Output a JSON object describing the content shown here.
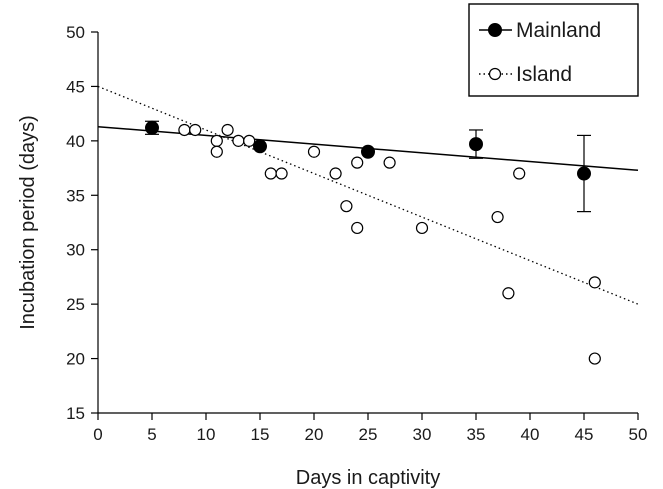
{
  "chart_data": {
    "type": "scatter",
    "xlabel": "Days in captivity",
    "ylabel": "Incubation period (days)",
    "xlim": [
      0,
      50
    ],
    "ylim": [
      15,
      50
    ],
    "xticks": [
      0,
      5,
      10,
      15,
      20,
      25,
      30,
      35,
      40,
      45,
      50
    ],
    "yticks": [
      15,
      20,
      25,
      30,
      35,
      40,
      45,
      50
    ],
    "grid": false,
    "legend_position": "top-right",
    "series": [
      {
        "name": "Mainland",
        "marker": "filled-circle",
        "line_style": "solid",
        "color": "#000000",
        "points": [
          {
            "x": 5,
            "y": 41.2,
            "err_low": 40.6,
            "err_high": 41.8
          },
          {
            "x": 15,
            "y": 39.5
          },
          {
            "x": 25,
            "y": 39.0
          },
          {
            "x": 35,
            "y": 39.7,
            "err_low": 38.4,
            "err_high": 41.0
          },
          {
            "x": 45,
            "y": 37.0,
            "err_low": 33.5,
            "err_high": 40.5
          }
        ],
        "fit": {
          "x": [
            0,
            50
          ],
          "y": [
            41.3,
            37.3
          ]
        }
      },
      {
        "name": "Island",
        "marker": "open-circle",
        "line_style": "dotted",
        "color": "#000000",
        "points": [
          {
            "x": 8,
            "y": 41
          },
          {
            "x": 9,
            "y": 41
          },
          {
            "x": 11,
            "y": 40
          },
          {
            "x": 11,
            "y": 39
          },
          {
            "x": 12,
            "y": 41
          },
          {
            "x": 13,
            "y": 40
          },
          {
            "x": 14,
            "y": 40
          },
          {
            "x": 16,
            "y": 37
          },
          {
            "x": 17,
            "y": 37
          },
          {
            "x": 20,
            "y": 39
          },
          {
            "x": 22,
            "y": 37
          },
          {
            "x": 23,
            "y": 34
          },
          {
            "x": 24,
            "y": 38
          },
          {
            "x": 24,
            "y": 32
          },
          {
            "x": 27,
            "y": 38
          },
          {
            "x": 30,
            "y": 32
          },
          {
            "x": 37,
            "y": 33
          },
          {
            "x": 38,
            "y": 26
          },
          {
            "x": 39,
            "y": 37
          },
          {
            "x": 46,
            "y": 27
          },
          {
            "x": 46,
            "y": 20
          }
        ],
        "fit": {
          "x": [
            0,
            50
          ],
          "y": [
            45.0,
            25.0
          ]
        }
      }
    ]
  }
}
